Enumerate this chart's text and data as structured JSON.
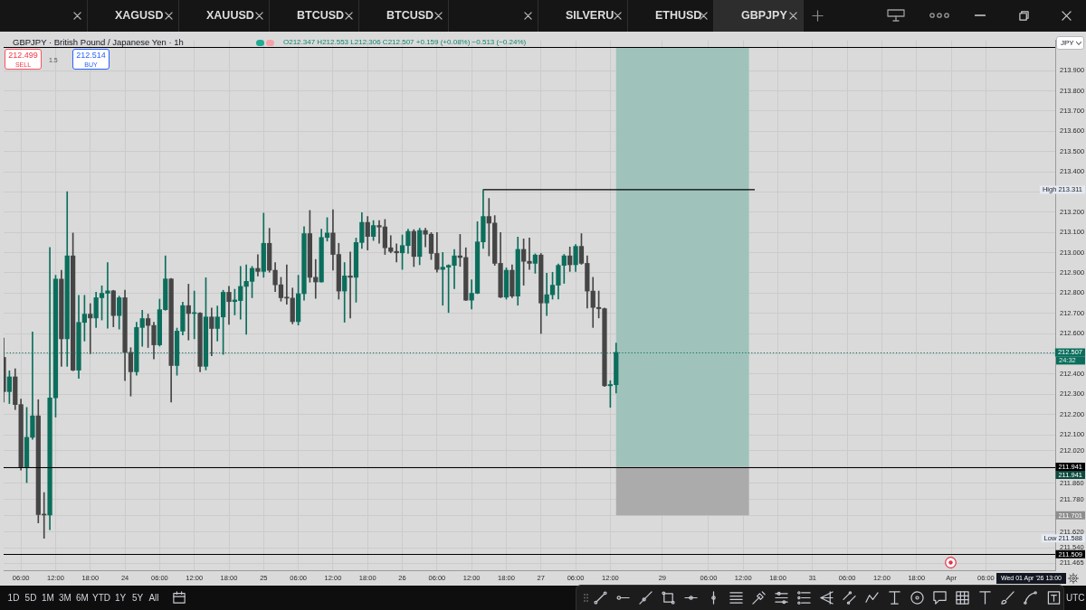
{
  "chart_data": {
    "type": "candlestick",
    "title": "GBPJPY · British Pound / Japanese Yen · 1h",
    "subtitle": "O212.347 H212.553 L212.306 C212.507 +0.159 (+0.08%) −0.513 (−0.24%)",
    "categories": [
      null,
      null,
      null,
      "06:00",
      null,
      null,
      null,
      null,
      null,
      "12:00",
      null,
      null,
      null,
      null,
      null,
      "18:00",
      null,
      null,
      null,
      null,
      null,
      "24",
      null,
      null,
      null,
      null,
      null,
      "06:00",
      null,
      null,
      null,
      null,
      null,
      "12:00",
      null,
      null,
      null,
      null,
      null,
      "18:00",
      null,
      null,
      null,
      null,
      null,
      "25",
      null,
      null,
      null,
      null,
      null,
      "06:00",
      null,
      null,
      null,
      null,
      null,
      "12:00",
      null,
      null,
      null,
      null,
      null,
      "18:00",
      null,
      null,
      null,
      null,
      null,
      "26",
      null,
      null,
      null,
      null,
      null,
      "06:00",
      null,
      null,
      null,
      null,
      null,
      "12:00",
      null,
      null,
      null,
      null,
      null,
      "18:00",
      null,
      null,
      null,
      null,
      null,
      "27",
      null,
      null,
      null,
      null,
      null,
      "06:00",
      null,
      null,
      null,
      null,
      null,
      "12:00",
      null,
      null,
      null,
      null,
      null,
      null,
      null,
      null,
      "29",
      null,
      null,
      null,
      null,
      null,
      null,
      null,
      "06:00",
      null,
      null,
      null,
      null,
      null,
      "12:00",
      null,
      null,
      null,
      null,
      null,
      "18:00",
      null,
      null,
      null,
      null,
      null,
      "31",
      null,
      null,
      null,
      null,
      null,
      "06:00",
      null,
      null,
      null,
      null,
      null,
      "12:00",
      null,
      null,
      null,
      null,
      null,
      "18:00",
      null,
      null,
      null,
      null,
      null,
      "Apr",
      null,
      null,
      null,
      null,
      null,
      "06:00",
      null,
      null,
      null,
      null,
      null,
      null,
      null,
      null,
      null,
      null,
      null,
      null
    ],
    "ohlc": [
      [
        212.482,
        212.578,
        212.261,
        212.313
      ],
      [
        212.313,
        212.416,
        212.254,
        212.386
      ],
      [
        212.386,
        212.426,
        212.224,
        212.249
      ],
      [
        212.249,
        212.276,
        211.925,
        211.94
      ],
      [
        211.94,
        212.235,
        211.863,
        212.087
      ],
      [
        212.087,
        212.608,
        212.077,
        212.193
      ],
      [
        212.193,
        212.273,
        211.664,
        211.705
      ],
      [
        211.705,
        211.814,
        211.588,
        211.703
      ],
      [
        211.703,
        213.025,
        211.63,
        212.282
      ],
      [
        212.282,
        212.888,
        212.187,
        212.869
      ],
      [
        212.869,
        212.913,
        212.438,
        212.574
      ],
      [
        212.574,
        213.301,
        212.438,
        212.984
      ],
      [
        212.984,
        213.097,
        212.416,
        212.419
      ],
      [
        212.419,
        212.789,
        212.379,
        212.655
      ],
      [
        212.655,
        212.789,
        212.563,
        212.696
      ],
      [
        212.696,
        212.748,
        212.5,
        212.677
      ],
      [
        212.677,
        212.804,
        212.63,
        212.777
      ],
      [
        212.777,
        212.836,
        212.667,
        212.799
      ],
      [
        212.799,
        212.951,
        212.627,
        212.811
      ],
      [
        212.811,
        212.814,
        212.633,
        212.689
      ],
      [
        212.689,
        212.785,
        212.622,
        212.777
      ],
      [
        212.777,
        212.814,
        212.367,
        212.507
      ],
      [
        212.507,
        212.53,
        212.291,
        212.411
      ],
      [
        212.411,
        212.656,
        212.394,
        212.63
      ],
      [
        212.63,
        212.715,
        212.537,
        212.674
      ],
      [
        212.674,
        212.696,
        212.531,
        212.64
      ],
      [
        212.64,
        212.656,
        212.475,
        212.544
      ],
      [
        212.544,
        212.77,
        212.538,
        212.718
      ],
      [
        212.718,
        212.984,
        212.715,
        212.87
      ],
      [
        212.87,
        212.872,
        212.261,
        212.442
      ],
      [
        212.442,
        212.627,
        212.394,
        212.612
      ],
      [
        212.612,
        212.755,
        212.593,
        212.738
      ],
      [
        212.738,
        212.844,
        212.568,
        212.699
      ],
      [
        212.699,
        212.81,
        212.574,
        212.701
      ],
      [
        212.701,
        212.704,
        212.411,
        212.438
      ],
      [
        212.438,
        212.876,
        212.42,
        212.682
      ],
      [
        212.682,
        212.726,
        212.49,
        212.625
      ],
      [
        212.625,
        212.736,
        212.563,
        212.682
      ],
      [
        212.682,
        212.814,
        212.497,
        212.804
      ],
      [
        212.804,
        212.833,
        212.645,
        212.758
      ],
      [
        212.758,
        212.819,
        212.692,
        212.766
      ],
      [
        212.763,
        212.932,
        212.671,
        212.833
      ],
      [
        212.833,
        212.94,
        212.596,
        212.858
      ],
      [
        212.858,
        212.932,
        212.777,
        212.922
      ],
      [
        212.922,
        212.99,
        212.884,
        212.907
      ],
      [
        212.907,
        213.195,
        212.878,
        213.046
      ],
      [
        213.046,
        213.121,
        212.903,
        212.913
      ],
      [
        212.913,
        212.951,
        212.807,
        212.841
      ],
      [
        212.841,
        212.878,
        212.76,
        212.777
      ],
      [
        212.78,
        212.94,
        212.745,
        212.775
      ],
      [
        212.775,
        212.825,
        212.648,
        212.659
      ],
      [
        212.659,
        212.888,
        212.642,
        212.797
      ],
      [
        212.797,
        213.128,
        212.765,
        213.094
      ],
      [
        213.094,
        213.209,
        212.854,
        212.878
      ],
      [
        212.878,
        212.966,
        212.774,
        212.855
      ],
      [
        212.855,
        213.116,
        212.854,
        213.075
      ],
      [
        213.075,
        213.173,
        213.057,
        213.097
      ],
      [
        213.097,
        213.212,
        212.914,
        212.991
      ],
      [
        212.991,
        213.046,
        212.77,
        212.81
      ],
      [
        212.81,
        212.951,
        212.656,
        212.885
      ],
      [
        212.885,
        213.003,
        212.677,
        212.878
      ],
      [
        212.878,
        213.072,
        212.755,
        213.05
      ],
      [
        213.05,
        213.198,
        213.021,
        213.149
      ],
      [
        213.149,
        213.179,
        213.013,
        213.08
      ],
      [
        213.08,
        213.158,
        213.06,
        213.134
      ],
      [
        213.134,
        213.158,
        213.046,
        213.127
      ],
      [
        213.127,
        213.164,
        212.991,
        213.024
      ],
      [
        213.024,
        213.084,
        212.999,
        213.006
      ],
      [
        213.006,
        213.043,
        212.954,
        212.999
      ],
      [
        212.999,
        213.087,
        212.917,
        213.035
      ],
      [
        213.035,
        213.116,
        212.996,
        213.105
      ],
      [
        213.105,
        213.114,
        212.931,
        212.981
      ],
      [
        212.981,
        213.12,
        212.94,
        213.109
      ],
      [
        213.109,
        213.12,
        213.028,
        213.091
      ],
      [
        213.091,
        213.099,
        212.966,
        212.996
      ],
      [
        212.996,
        213.099,
        212.903,
        212.917
      ],
      [
        212.917,
        213.001,
        212.74,
        212.928
      ],
      [
        212.928,
        212.94,
        212.704,
        212.937
      ],
      [
        212.937,
        213.016,
        212.822,
        212.984
      ],
      [
        212.984,
        213.09,
        212.932,
        212.976
      ],
      [
        212.976,
        213.024,
        212.763,
        212.765
      ],
      [
        212.765,
        212.866,
        212.721,
        212.799
      ],
      [
        212.799,
        213.153,
        212.797,
        213.053
      ],
      [
        213.053,
        213.311,
        213.021,
        213.179
      ],
      [
        213.179,
        213.268,
        212.984,
        213.146
      ],
      [
        213.146,
        213.183,
        212.937,
        212.947
      ],
      [
        212.947,
        213.099,
        212.777,
        212.78
      ],
      [
        212.78,
        212.925,
        212.77,
        212.913
      ],
      [
        212.913,
        212.94,
        212.777,
        212.785
      ],
      [
        212.785,
        213.077,
        212.74,
        213.016
      ],
      [
        213.016,
        213.068,
        212.839,
        212.957
      ],
      [
        212.957,
        213.072,
        212.917,
        212.947
      ],
      [
        212.947,
        212.994,
        212.898,
        212.988
      ],
      [
        212.988,
        212.996,
        212.6,
        212.751
      ],
      [
        212.751,
        212.898,
        212.689,
        212.792
      ],
      [
        212.792,
        212.903,
        212.77,
        212.839
      ],
      [
        212.839,
        212.944,
        212.77,
        212.937
      ],
      [
        212.937,
        212.991,
        212.848,
        212.984
      ],
      [
        212.984,
        213.028,
        212.907,
        212.94
      ],
      [
        212.94,
        213.04,
        212.907,
        213.031
      ],
      [
        213.031,
        213.094,
        212.942,
        212.947
      ],
      [
        212.947,
        212.984,
        212.726,
        212.81
      ],
      [
        212.81,
        212.878,
        212.63,
        212.729
      ],
      [
        212.729,
        212.81,
        212.677,
        212.723
      ],
      [
        212.723,
        212.726,
        212.338,
        212.342
      ],
      [
        212.342,
        212.367,
        212.235,
        212.348
      ],
      [
        212.347,
        212.553,
        212.306,
        212.507
      ],
      null,
      null,
      null,
      null,
      null,
      null,
      null,
      null,
      null,
      null,
      null,
      null,
      null,
      null,
      null,
      null,
      null,
      null,
      null,
      null,
      null,
      null,
      null,
      null,
      null,
      null,
      null,
      null,
      null,
      null,
      null,
      null,
      null,
      null,
      null,
      null,
      null,
      null,
      null,
      null,
      null,
      null,
      null,
      null,
      null,
      null,
      null,
      null,
      null,
      null,
      null,
      null,
      null,
      null,
      null,
      null,
      null,
      null,
      null,
      null,
      null,
      null,
      null,
      null,
      null,
      null,
      null,
      null,
      null,
      null,
      null,
      null,
      null,
      null,
      null,
      null
    ],
    "colors": [
      "#454545",
      "#0b6e5c",
      "#454545",
      "#454545",
      "#0b6e5c",
      "#0b6e5c",
      "#454545",
      "#454545",
      "#0b6e5c",
      "#0b6e5c",
      "#454545",
      "#0b6e5c",
      "#454545",
      "#0b6e5c",
      "#0b6e5c",
      "#454545",
      "#0b6e5c",
      "#0b6e5c",
      "#0b6e5c",
      "#454545",
      "#0b6e5c",
      "#454545",
      "#454545",
      "#0b6e5c",
      "#0b6e5c",
      "#454545",
      "#454545",
      "#0b6e5c",
      "#0b6e5c",
      "#454545",
      "#0b6e5c",
      "#0b6e5c",
      "#454545",
      "#0b6e5c",
      "#454545",
      "#0b6e5c",
      "#454545",
      "#0b6e5c",
      "#0b6e5c",
      "#454545",
      "#0b6e5c",
      "#0b6e5c",
      "#0b6e5c",
      "#0b6e5c",
      "#454545",
      "#0b6e5c",
      "#454545",
      "#454545",
      "#454545",
      "#454545",
      "#454545",
      "#0b6e5c",
      "#0b6e5c",
      "#454545",
      "#454545",
      "#0b6e5c",
      "#0b6e5c",
      "#454545",
      "#454545",
      "#0b6e5c",
      "#454545",
      "#0b6e5c",
      "#0b6e5c",
      "#454545",
      "#0b6e5c",
      "#454545",
      "#454545",
      "#454545",
      "#454545",
      "#0b6e5c",
      "#0b6e5c",
      "#454545",
      "#0b6e5c",
      "#454545",
      "#454545",
      "#454545",
      "#0b6e5c",
      "#0b6e5c",
      "#0b6e5c",
      "#454545",
      "#454545",
      "#0b6e5c",
      "#0b6e5c",
      "#0b6e5c",
      "#454545",
      "#454545",
      "#454545",
      "#0b6e5c",
      "#454545",
      "#0b6e5c",
      "#454545",
      "#454545",
      "#0b6e5c",
      "#454545",
      "#0b6e5c",
      "#0b6e5c",
      "#0b6e5c",
      "#0b6e5c",
      "#454545",
      "#0b6e5c",
      "#454545",
      "#454545",
      "#454545",
      "#454545",
      "#454545",
      "#0b6e5c",
      "#0b6e5c",
      null,
      null,
      null,
      null,
      null,
      null,
      null,
      null,
      null,
      null,
      null,
      null,
      null,
      null,
      null,
      null,
      null,
      null,
      null,
      null,
      null,
      null,
      null,
      null,
      null,
      null,
      null,
      null,
      null,
      null,
      null,
      null,
      null,
      null,
      null,
      null,
      null,
      null,
      null,
      null,
      null,
      null,
      null,
      null,
      null,
      null,
      null,
      null,
      null,
      null,
      null,
      null,
      null,
      null,
      null,
      null,
      null,
      null,
      null,
      null,
      null,
      null,
      null,
      null,
      null,
      null,
      null,
      null,
      null,
      null,
      null,
      null,
      null,
      null,
      null,
      null
    ],
    "series": [
      {
        "type": "line",
        "color": "#000000",
        "values": [
          null,
          null,
          null,
          null,
          null,
          null,
          null,
          null,
          null,
          null,
          null,
          null,
          null,
          null,
          null,
          null,
          null,
          null,
          null,
          null,
          null,
          null,
          null,
          null,
          null,
          null,
          null,
          null,
          null,
          null,
          null,
          null,
          null,
          null,
          null,
          null,
          null,
          null,
          null,
          null,
          null,
          null,
          null,
          null,
          null,
          null,
          null,
          null,
          null,
          null,
          null,
          null,
          null,
          null,
          null,
          null,
          null,
          null,
          null,
          null,
          null,
          null,
          null,
          null,
          null,
          null,
          null,
          null,
          null,
          null,
          null,
          null,
          null,
          null,
          null,
          null,
          null,
          null,
          null,
          null,
          null,
          null,
          null,
          213.311,
          213.311,
          213.311,
          213.311,
          213.311,
          213.311,
          213.311,
          213.311,
          213.311,
          213.311,
          213.311,
          213.311,
          213.311,
          213.311,
          213.311,
          213.311,
          213.311,
          213.311,
          213.311,
          213.311,
          213.311,
          213.311,
          213.311,
          213.311,
          213.311,
          213.311,
          213.311,
          213.311,
          213.311,
          213.311,
          213.311,
          213.311,
          213.311,
          213.311,
          213.311,
          213.311,
          213.311,
          213.311,
          213.311,
          213.311,
          213.311,
          213.311,
          213.311,
          213.311,
          213.311,
          213.311,
          213.311,
          213.311,
          null,
          null,
          null,
          null,
          null,
          null,
          null,
          null,
          null,
          null,
          null,
          null,
          null,
          null,
          null,
          null,
          null,
          null,
          null,
          null,
          null,
          null,
          null,
          null,
          null,
          null,
          null,
          null,
          null,
          null,
          null,
          null,
          null,
          null,
          null,
          null,
          null,
          null,
          null,
          null,
          null,
          null,
          null,
          null,
          null,
          null,
          null,
          null,
          null,
          null,
          null,
          null
        ]
      }
    ],
    "ylim": [
      211.43,
      214.05
    ],
    "yticks": [
      {
        "value": 213.9,
        "label": "213.900"
      },
      {
        "value": 213.8,
        "label": "213.800"
      },
      {
        "value": 213.7,
        "label": "213.700"
      },
      {
        "value": 213.6,
        "label": "213.600"
      },
      {
        "value": 213.5,
        "label": "213.500"
      },
      {
        "value": 213.4,
        "label": "213.400"
      },
      {
        "value": 213.3,
        "label": null
      },
      {
        "value": 213.2,
        "label": "213.200"
      },
      {
        "value": 213.1,
        "label": "213.100"
      },
      {
        "value": 213,
        "label": "213.000"
      },
      {
        "value": 212.9,
        "label": "212.900"
      },
      {
        "value": 212.8,
        "label": "212.800"
      },
      {
        "value": 212.7,
        "label": "212.700"
      },
      {
        "value": 212.6,
        "label": "212.600"
      },
      {
        "value": 212.5,
        "label": null
      },
      {
        "value": 212.4,
        "label": "212.400"
      },
      {
        "value": 212.3,
        "label": "212.300"
      },
      {
        "value": 212.2,
        "label": "212.200"
      },
      {
        "value": 212.1,
        "label": "212.100"
      },
      {
        "value": 212.02,
        "label": "212.020"
      },
      {
        "value": 211.94,
        "label": null
      },
      {
        "value": 211.86,
        "label": "211.860"
      },
      {
        "value": 211.78,
        "label": "211.780"
      },
      {
        "value": 211.7,
        "label": null
      },
      {
        "value": 211.62,
        "label": "211.620"
      },
      {
        "value": 211.54,
        "label": "211.540"
      },
      {
        "value": 211.465,
        "label": "211.465"
      }
    ],
    "grid": true,
    "ref_lines": [
      {
        "axis": "y",
        "value": 214.015,
        "color": "#000000"
      },
      {
        "axis": "y",
        "value": 212.507,
        "label": "212.507",
        "color": "#0b6e5c",
        "line_style": "dotted"
      },
      {
        "axis": "y",
        "value": 211.941,
        "label": "211.941",
        "color": "#000000"
      },
      {
        "axis": "y",
        "value": 211.509,
        "label": "211.509",
        "color": "#000000"
      }
    ],
    "bands": [
      {
        "axis": "y",
        "from": 211.941,
        "to": 214.015,
        "color": "#9fc3bb"
      },
      {
        "axis": "y",
        "from": 211.701,
        "to": 211.941,
        "color": "#ababab"
      }
    ],
    "annotations": [
      "212.499",
      "SELL",
      "1.5",
      "212.514",
      "BUY",
      "XAGUSD",
      "XAUUSD",
      "BTCUSD",
      "BTCUSD",
      "SILVERU",
      "ETHUSD",
      "GBPJPY",
      "1D",
      "5D",
      "1M",
      "3M",
      "6M",
      "YTD",
      "1Y",
      "5Y",
      "All",
      "UTC",
      "JPY",
      "Wed 01 Apr '26 13:00",
      "High 213.311",
      "24:32",
      "Low 211.588",
      "211.941",
      "211.701"
    ]
  }
}
